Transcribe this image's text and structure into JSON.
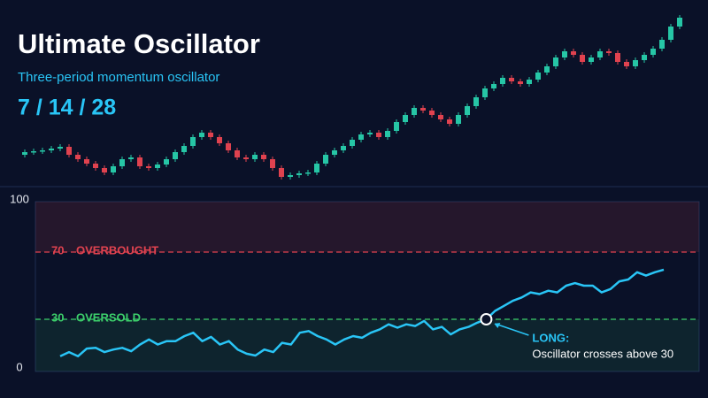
{
  "header": {
    "title": "Ultimate Oscillator",
    "subtitle": "Three-period momentum oscillator",
    "periods": "7 / 14 / 28"
  },
  "chart_data": [
    {
      "type": "candlestick",
      "up_color": "#26c6a6",
      "down_color": "#e0424f",
      "ylim": [
        0,
        210
      ],
      "open": [
        45,
        48,
        49,
        50,
        52,
        54,
        45,
        40,
        35,
        30,
        25,
        32,
        40,
        42,
        32,
        30,
        34,
        40,
        48,
        55,
        65,
        70,
        65,
        58,
        50,
        42,
        40,
        45,
        40,
        30,
        20,
        22,
        24,
        25,
        35,
        45,
        50,
        55,
        62,
        68,
        70,
        65,
        72,
        82,
        90,
        98,
        95,
        90,
        85,
        80,
        90,
        100,
        110,
        120,
        125,
        132,
        128,
        125,
        130,
        138,
        145,
        155,
        162,
        158,
        150,
        155,
        162,
        160,
        150,
        145,
        152,
        158,
        165,
        175,
        190
      ],
      "high": [
        51,
        52,
        53,
        55,
        57,
        57,
        48,
        43,
        38,
        33,
        35,
        43,
        45,
        45,
        35,
        37,
        43,
        51,
        58,
        68,
        73,
        73,
        68,
        61,
        53,
        45,
        48,
        48,
        43,
        33,
        25,
        27,
        28,
        38,
        48,
        53,
        58,
        65,
        71,
        73,
        73,
        75,
        85,
        93,
        101,
        101,
        98,
        93,
        88,
        93,
        103,
        113,
        123,
        128,
        135,
        135,
        131,
        133,
        141,
        148,
        158,
        165,
        165,
        161,
        158,
        165,
        165,
        163,
        153,
        155,
        161,
        168,
        178,
        193,
        203
      ],
      "low": [
        42,
        45,
        46,
        47,
        49,
        42,
        37,
        32,
        27,
        22,
        22,
        29,
        37,
        29,
        27,
        27,
        31,
        37,
        45,
        52,
        62,
        62,
        55,
        47,
        39,
        37,
        37,
        37,
        27,
        17,
        17,
        19,
        21,
        22,
        32,
        42,
        47,
        52,
        59,
        65,
        62,
        62,
        69,
        79,
        87,
        92,
        87,
        82,
        77,
        77,
        87,
        97,
        107,
        117,
        122,
        125,
        122,
        122,
        127,
        135,
        142,
        152,
        155,
        147,
        147,
        152,
        157,
        147,
        142,
        142,
        149,
        155,
        162,
        172,
        187
      ],
      "close": [
        48,
        49,
        50,
        52,
        54,
        45,
        40,
        35,
        30,
        25,
        32,
        40,
        42,
        32,
        30,
        34,
        40,
        48,
        55,
        65,
        70,
        65,
        58,
        50,
        42,
        40,
        45,
        40,
        30,
        20,
        22,
        24,
        25,
        35,
        45,
        50,
        55,
        62,
        68,
        70,
        65,
        72,
        82,
        90,
        98,
        95,
        90,
        85,
        80,
        90,
        100,
        110,
        120,
        125,
        132,
        128,
        125,
        130,
        138,
        145,
        155,
        162,
        158,
        150,
        155,
        162,
        160,
        150,
        145,
        152,
        158,
        165,
        175,
        190,
        200
      ]
    },
    {
      "type": "line",
      "color": "#29c5f6",
      "ylim": [
        0,
        100
      ],
      "yticks": [
        0,
        100
      ],
      "values": [
        8,
        10.5,
        8,
        12.6,
        13,
        10.5,
        12,
        13,
        11,
        15,
        18,
        15,
        17,
        17,
        20,
        22,
        17,
        19.5,
        15,
        17,
        12,
        9.5,
        8.4,
        12,
        10.5,
        16,
        15,
        22,
        23,
        20,
        18,
        15,
        18,
        20,
        19,
        22,
        24,
        27,
        25,
        27,
        26,
        29,
        24,
        25.5,
        21,
        24,
        25.5,
        28,
        30,
        35,
        38,
        41,
        43,
        46,
        45,
        47,
        46,
        50,
        51.5,
        50,
        50,
        46,
        48,
        52.6,
        53.7,
        58,
        56,
        58,
        59.5
      ],
      "levels": [
        {
          "value": 70,
          "label": "OVERBOUGHT",
          "color": "#e0424f"
        },
        {
          "value": 30,
          "label": "OVERSOLD",
          "color": "#3ccf6b"
        }
      ],
      "annotation": {
        "title": "LONG:",
        "text": "Oscillator crosses above 30"
      }
    }
  ]
}
